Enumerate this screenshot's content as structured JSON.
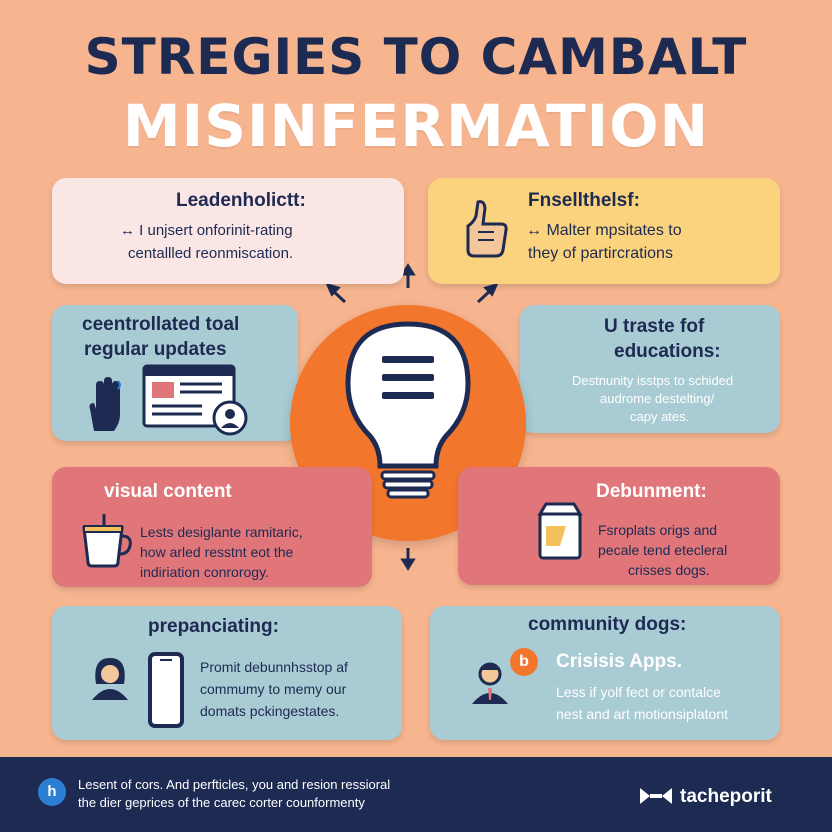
{
  "header": {
    "line1": "STREGIES TO CAMBALT",
    "line2": "MISINFERMATION"
  },
  "cards": {
    "top_left": {
      "title": "Leadenholictt:",
      "line1": "↔ I unjsert onforinit-rating",
      "line2": "centallled reonmiscation."
    },
    "top_right": {
      "title": "Fnsellthelsf:",
      "line1": "↔ Malter mpsitates to",
      "line2": "they of partircrations"
    },
    "mid_left": {
      "title1": "ceentrollated toal",
      "title2": "regular updates"
    },
    "mid_right": {
      "title1": "U traste fof",
      "title2": "educations:",
      "line1": "Destnunity isstps to schided",
      "line2": "audrome destelting/",
      "line3": "capy ates."
    },
    "low_left": {
      "title": "visual content",
      "line1": "Lests desiglante ramitaric,",
      "line2": "how arled resstnt eot the",
      "line3": "indiriation conrorogy."
    },
    "low_right": {
      "title": "Debunment:",
      "line1": "Fsroplats origs and",
      "line2": "pecale tend etecleral",
      "line3": "crisses dogs."
    },
    "bottom_left": {
      "title": "prepanciating:",
      "line1": "Promit debunnhsstop af",
      "line2": "commumy to memy our",
      "line3": "domats pckingestates."
    },
    "bottom_right": {
      "title": "community dogs:",
      "badge": "b",
      "subtitle": "Crisisis Apps.",
      "line1": "Less if yolf fect or contalce",
      "line2": "nest and art motionsiplatont"
    }
  },
  "footer": {
    "line1": "Lesent of cors. And perfticles, you and resion ressioral",
    "line2": "the dier geprices of the carec corter counformenty",
    "badge": "h",
    "brand": "tacheporit"
  },
  "colors": {
    "background": "#f6b48f",
    "navy": "#1d2a52",
    "orange": "#f2762b",
    "pink_card": "#fbe6e6",
    "yellow_card": "#fbd37e",
    "blue_card": "#a9cbd3",
    "red_card": "#e0767a"
  },
  "icons": [
    "bulb-icon",
    "thumbs-up-icon",
    "hand-icon",
    "browser-window-icon",
    "user-icon",
    "coffee-cup-icon",
    "document-box-icon",
    "person-icon",
    "phone-icon",
    "businessman-icon",
    "chat-badge-icon",
    "logo-icon"
  ]
}
